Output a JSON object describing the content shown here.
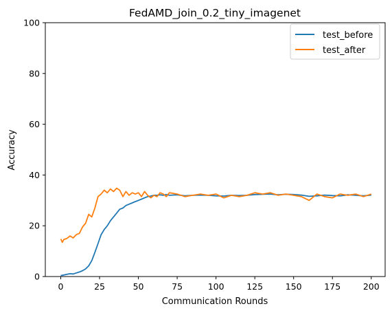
{
  "chart_data": {
    "type": "line",
    "title": "FedAMD_join_0.2_tiny_imagenet",
    "xlabel": "Communication Rounds",
    "ylabel": "Accuracy",
    "xlim": [
      -9.95,
      208.95
    ],
    "ylim": [
      0,
      100
    ],
    "xticks": [
      0,
      25,
      50,
      75,
      100,
      125,
      150,
      175,
      200
    ],
    "yticks": [
      0,
      20,
      40,
      60,
      80,
      100
    ],
    "grid": false,
    "legend_position": "top-right",
    "series": [
      {
        "name": "test_before",
        "color": "#1f77b4",
        "points": [
          [
            0,
            0.4
          ],
          [
            2,
            0.6
          ],
          [
            4,
            0.9
          ],
          [
            6,
            1.1
          ],
          [
            8,
            1.0
          ],
          [
            10,
            1.4
          ],
          [
            12,
            1.8
          ],
          [
            14,
            2.3
          ],
          [
            16,
            3.0
          ],
          [
            18,
            4.2
          ],
          [
            20,
            6.3
          ],
          [
            22,
            9.5
          ],
          [
            24,
            13.0
          ],
          [
            26,
            16.5
          ],
          [
            28,
            18.5
          ],
          [
            30,
            20.0
          ],
          [
            32,
            22.0
          ],
          [
            34,
            23.5
          ],
          [
            36,
            25.0
          ],
          [
            38,
            26.5
          ],
          [
            40,
            27.0
          ],
          [
            42,
            28.0
          ],
          [
            44,
            28.5
          ],
          [
            46,
            29.0
          ],
          [
            48,
            29.5
          ],
          [
            50,
            30.0
          ],
          [
            52,
            30.5
          ],
          [
            54,
            31.0
          ],
          [
            56,
            31.5
          ],
          [
            58,
            31.7
          ],
          [
            60,
            32.0
          ],
          [
            62,
            32.0
          ],
          [
            64,
            32.2
          ],
          [
            66,
            32.0
          ],
          [
            68,
            32.3
          ],
          [
            70,
            32.0
          ],
          [
            75,
            32.2
          ],
          [
            80,
            31.8
          ],
          [
            85,
            32.0
          ],
          [
            90,
            32.1
          ],
          [
            95,
            32.0
          ],
          [
            100,
            31.8
          ],
          [
            105,
            31.7
          ],
          [
            110,
            32.0
          ],
          [
            115,
            31.9
          ],
          [
            120,
            32.0
          ],
          [
            125,
            32.3
          ],
          [
            130,
            32.4
          ],
          [
            135,
            32.5
          ],
          [
            140,
            32.2
          ],
          [
            145,
            32.4
          ],
          [
            150,
            32.3
          ],
          [
            155,
            32.1
          ],
          [
            160,
            31.6
          ],
          [
            165,
            31.8
          ],
          [
            170,
            32.1
          ],
          [
            175,
            31.9
          ],
          [
            180,
            31.8
          ],
          [
            185,
            32.2
          ],
          [
            190,
            32.0
          ],
          [
            195,
            31.8
          ],
          [
            200,
            32.1
          ]
        ]
      },
      {
        "name": "test_after",
        "color": "#ff7f0e",
        "points": [
          [
            0,
            14.8
          ],
          [
            1,
            13.5
          ],
          [
            2,
            14.6
          ],
          [
            4,
            15.0
          ],
          [
            6,
            16.0
          ],
          [
            8,
            15.2
          ],
          [
            10,
            16.5
          ],
          [
            12,
            17.0
          ],
          [
            14,
            19.5
          ],
          [
            16,
            21.0
          ],
          [
            18,
            24.5
          ],
          [
            20,
            23.5
          ],
          [
            22,
            27.0
          ],
          [
            24,
            31.5
          ],
          [
            26,
            32.5
          ],
          [
            28,
            34.0
          ],
          [
            30,
            33.0
          ],
          [
            32,
            34.5
          ],
          [
            34,
            33.5
          ],
          [
            36,
            34.8
          ],
          [
            38,
            34.0
          ],
          [
            40,
            31.5
          ],
          [
            42,
            33.5
          ],
          [
            44,
            32.0
          ],
          [
            46,
            33.0
          ],
          [
            48,
            32.5
          ],
          [
            50,
            33.0
          ],
          [
            52,
            31.5
          ],
          [
            54,
            33.5
          ],
          [
            56,
            32.0
          ],
          [
            58,
            31.0
          ],
          [
            60,
            32.0
          ],
          [
            62,
            31.5
          ],
          [
            64,
            33.0
          ],
          [
            66,
            32.5
          ],
          [
            68,
            31.5
          ],
          [
            70,
            33.0
          ],
          [
            75,
            32.5
          ],
          [
            80,
            31.5
          ],
          [
            85,
            32.0
          ],
          [
            90,
            32.5
          ],
          [
            95,
            32.0
          ],
          [
            100,
            32.5
          ],
          [
            105,
            31.0
          ],
          [
            110,
            32.0
          ],
          [
            115,
            31.5
          ],
          [
            120,
            32.0
          ],
          [
            125,
            33.0
          ],
          [
            130,
            32.5
          ],
          [
            135,
            33.0
          ],
          [
            140,
            32.0
          ],
          [
            145,
            32.5
          ],
          [
            150,
            32.0
          ],
          [
            155,
            31.5
          ],
          [
            160,
            30.0
          ],
          [
            165,
            32.5
          ],
          [
            170,
            31.5
          ],
          [
            175,
            31.0
          ],
          [
            180,
            32.5
          ],
          [
            185,
            32.0
          ],
          [
            190,
            32.5
          ],
          [
            195,
            31.5
          ],
          [
            200,
            32.5
          ]
        ]
      }
    ]
  }
}
